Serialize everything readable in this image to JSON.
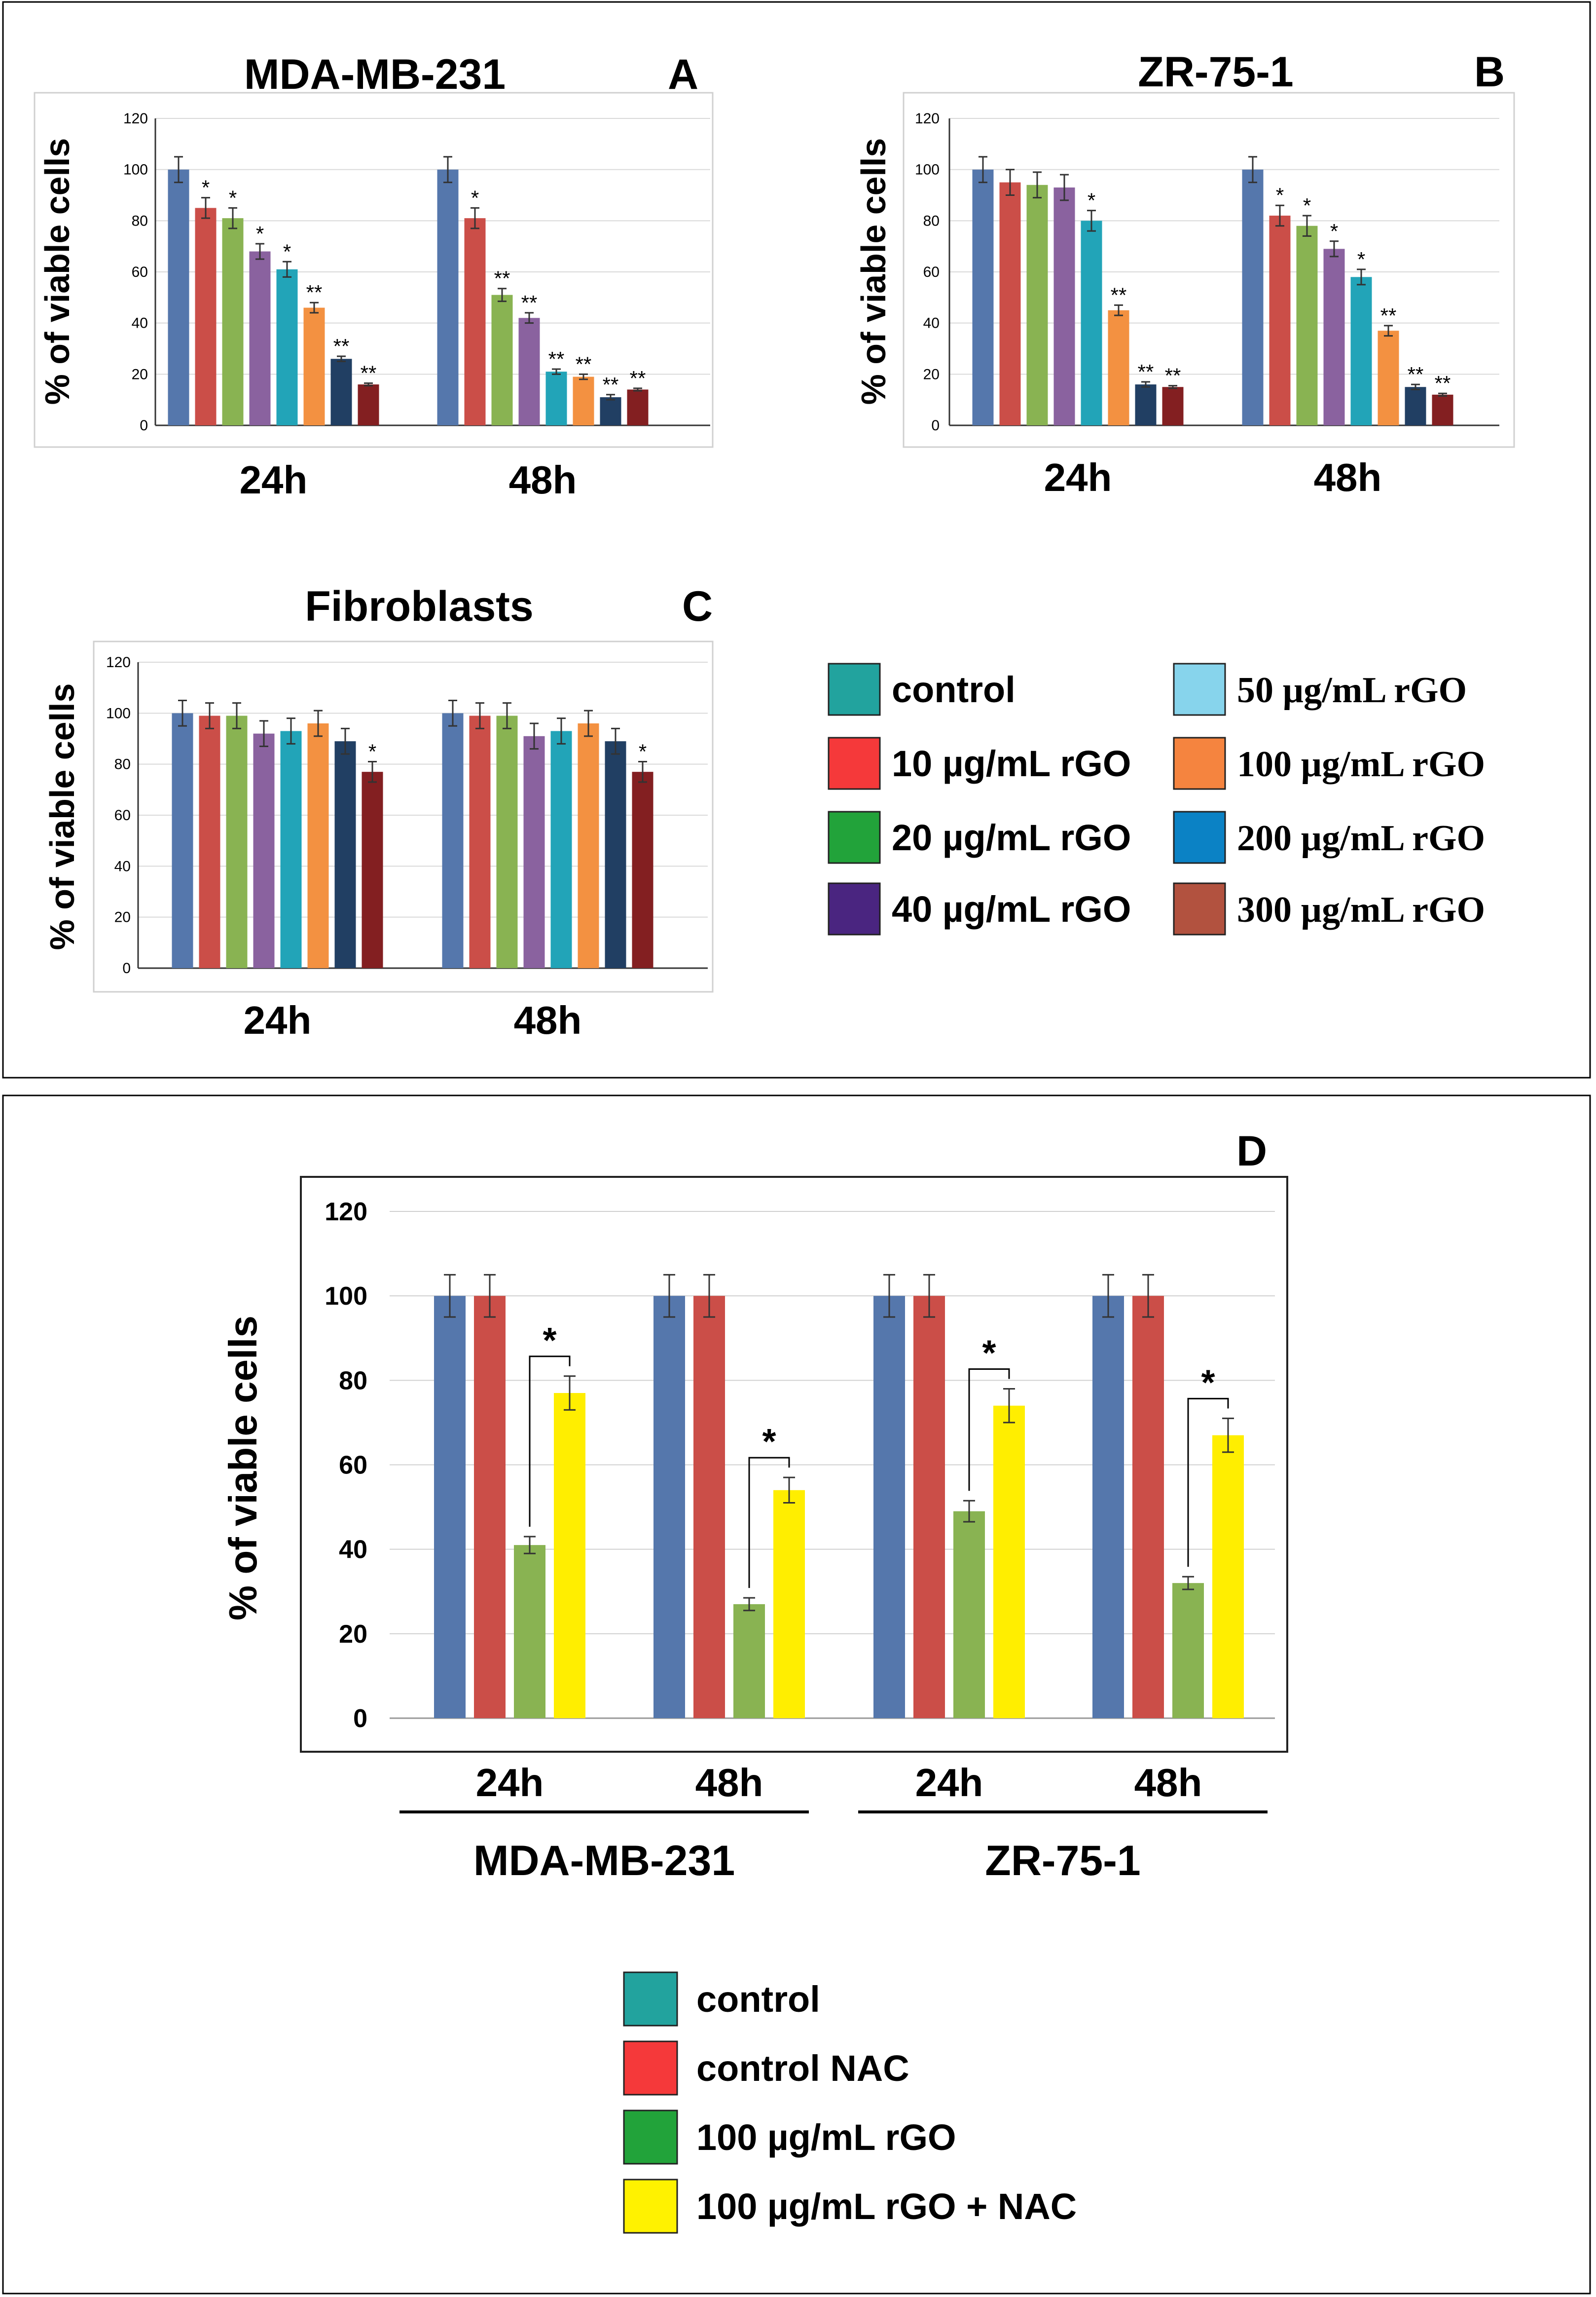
{
  "legend_top": {
    "items": [
      {
        "label": "control",
        "color": "#22A39E",
        "serif": false
      },
      {
        "label": "50 µg/mL rGO",
        "color": "#87D4EC",
        "serif": true
      },
      {
        "label": "10 µg/mL rGO",
        "color": "#F5393A",
        "serif": false
      },
      {
        "label": "100 µg/mL rGO",
        "color": "#F5843F",
        "serif": true
      },
      {
        "label": "20 µg/mL rGO",
        "color": "#22A33A",
        "serif": false
      },
      {
        "label": "200 µg/mL rGO",
        "color": "#0B82C5",
        "serif": true
      },
      {
        "label": "40 µg/mL rGO",
        "color": "#4A2580",
        "serif": false
      },
      {
        "label": "300 µg/mL rGO",
        "color": "#B2523F",
        "serif": true
      }
    ]
  },
  "legend_bottom": {
    "items": [
      {
        "label": "control",
        "color": "#22A39E"
      },
      {
        "label": "control NAC",
        "color": "#F5393A"
      },
      {
        "label": "100 µg/mL rGO",
        "color": "#22A33A"
      },
      {
        "label": "100 µg/mL rGO + NAC",
        "color": "#FFF200"
      }
    ]
  },
  "chart_data": [
    {
      "panel": "A",
      "type": "bar",
      "title": "MDA-MB-231",
      "ylabel": "% of viable cells",
      "ylim": [
        0,
        120
      ],
      "yticks": [
        "0",
        "20",
        "40",
        "60",
        "80",
        "100",
        "120"
      ],
      "categories": [
        "24h",
        "48h"
      ],
      "bar_colors": [
        "#5577AC",
        "#CB4E48",
        "#89B352",
        "#8A629F",
        "#22A4B8",
        "#F39141",
        "#213F63",
        "#831F21"
      ],
      "series": [
        {
          "name": "control",
          "values": [
            100,
            100
          ],
          "errors": [
            5,
            5
          ],
          "sig": [
            "",
            ""
          ]
        },
        {
          "name": "10 µg/mL rGO",
          "values": [
            85,
            81
          ],
          "errors": [
            4,
            4
          ],
          "sig": [
            "*",
            "*"
          ]
        },
        {
          "name": "20 µg/mL rGO",
          "values": [
            81,
            51
          ],
          "errors": [
            4,
            2.5
          ],
          "sig": [
            "*",
            "**"
          ]
        },
        {
          "name": "40 µg/mL rGO",
          "values": [
            68,
            42
          ],
          "errors": [
            3,
            2
          ],
          "sig": [
            "*",
            "**"
          ]
        },
        {
          "name": "50 µg/mL rGO",
          "values": [
            61,
            21
          ],
          "errors": [
            3,
            1
          ],
          "sig": [
            "*",
            "**"
          ]
        },
        {
          "name": "100 µg/mL rGO",
          "values": [
            46,
            19
          ],
          "errors": [
            2,
            1
          ],
          "sig": [
            "**",
            "**"
          ]
        },
        {
          "name": "200 µg/mL rGO",
          "values": [
            26,
            11
          ],
          "errors": [
            1,
            1
          ],
          "sig": [
            "**",
            "**"
          ]
        },
        {
          "name": "300 µg/mL rGO",
          "values": [
            16,
            14
          ],
          "errors": [
            0.5,
            0.5
          ],
          "sig": [
            "**",
            "**"
          ]
        }
      ]
    },
    {
      "panel": "B",
      "type": "bar",
      "title": "ZR-75-1",
      "ylabel": "% of viable cells",
      "ylim": [
        0,
        120
      ],
      "yticks": [
        "0",
        "20",
        "40",
        "60",
        "80",
        "100",
        "120"
      ],
      "categories": [
        "24h",
        "48h"
      ],
      "bar_colors": [
        "#5577AC",
        "#CB4E48",
        "#89B352",
        "#8A629F",
        "#22A4B8",
        "#F39141",
        "#213F63",
        "#831F21"
      ],
      "series": [
        {
          "name": "control",
          "values": [
            100,
            100
          ],
          "errors": [
            5,
            5
          ],
          "sig": [
            "",
            ""
          ]
        },
        {
          "name": "10 µg/mL rGO",
          "values": [
            95,
            82
          ],
          "errors": [
            5,
            4
          ],
          "sig": [
            "",
            "*"
          ]
        },
        {
          "name": "20 µg/mL rGO",
          "values": [
            94,
            78
          ],
          "errors": [
            5,
            4
          ],
          "sig": [
            "",
            "*"
          ]
        },
        {
          "name": "40 µg/mL rGO",
          "values": [
            93,
            69
          ],
          "errors": [
            5,
            3
          ],
          "sig": [
            "",
            "*"
          ]
        },
        {
          "name": "50 µg/mL rGO",
          "values": [
            80,
            58
          ],
          "errors": [
            4,
            3
          ],
          "sig": [
            "*",
            "*"
          ]
        },
        {
          "name": "100 µg/mL rGO",
          "values": [
            45,
            37
          ],
          "errors": [
            2,
            2
          ],
          "sig": [
            "**",
            "**"
          ]
        },
        {
          "name": "200 µg/mL rGO",
          "values": [
            16,
            15
          ],
          "errors": [
            1,
            1
          ],
          "sig": [
            "**",
            "**"
          ]
        },
        {
          "name": "300 µg/mL rGO",
          "values": [
            15,
            12
          ],
          "errors": [
            0.5,
            0.5
          ],
          "sig": [
            "**",
            "**"
          ]
        }
      ]
    },
    {
      "panel": "C",
      "type": "bar",
      "title": "Fibroblasts",
      "ylabel": "% of viable cells",
      "ylim": [
        0,
        120
      ],
      "yticks": [
        "0",
        "20",
        "40",
        "60",
        "80",
        "100",
        "120"
      ],
      "categories": [
        "24h",
        "48h"
      ],
      "bar_colors": [
        "#5577AC",
        "#CB4E48",
        "#89B352",
        "#8A629F",
        "#22A4B8",
        "#F39141",
        "#213F63",
        "#831F21"
      ],
      "series": [
        {
          "name": "control",
          "values": [
            100,
            100
          ],
          "errors": [
            5,
            5
          ],
          "sig": [
            "",
            ""
          ]
        },
        {
          "name": "10 µg/mL rGO",
          "values": [
            99,
            99
          ],
          "errors": [
            5,
            5
          ],
          "sig": [
            "",
            ""
          ]
        },
        {
          "name": "20 µg/mL rGO",
          "values": [
            99,
            99
          ],
          "errors": [
            5,
            5
          ],
          "sig": [
            "",
            ""
          ]
        },
        {
          "name": "40 µg/mL rGO",
          "values": [
            92,
            91
          ],
          "errors": [
            5,
            5
          ],
          "sig": [
            "",
            ""
          ]
        },
        {
          "name": "50 µg/mL rGO",
          "values": [
            93,
            93
          ],
          "errors": [
            5,
            5
          ],
          "sig": [
            "",
            ""
          ]
        },
        {
          "name": "100 µg/mL rGO",
          "values": [
            96,
            96
          ],
          "errors": [
            5,
            5
          ],
          "sig": [
            "",
            ""
          ]
        },
        {
          "name": "200 µg/mL rGO",
          "values": [
            89,
            89
          ],
          "errors": [
            5,
            5
          ],
          "sig": [
            "",
            ""
          ]
        },
        {
          "name": "300 µg/mL rGO",
          "values": [
            77,
            77
          ],
          "errors": [
            4,
            4
          ],
          "sig": [
            "*",
            "*"
          ]
        }
      ]
    },
    {
      "panel": "D",
      "type": "bar",
      "title": "",
      "ylabel": "% of viable cells",
      "ylim": [
        0,
        120
      ],
      "yticks": [
        "0",
        "20",
        "40",
        "60",
        "80",
        "100",
        "120"
      ],
      "categories": [
        "24h",
        "48h",
        "24h",
        "48h"
      ],
      "groups": [
        "MDA-MB-231",
        "ZR-75-1"
      ],
      "bar_colors": [
        "#5577AC",
        "#CB4E48",
        "#89B352",
        "#FFEE00"
      ],
      "series": [
        {
          "name": "control",
          "values": [
            100,
            100,
            100,
            100
          ],
          "errors": [
            5,
            5,
            5,
            5
          ]
        },
        {
          "name": "control NAC",
          "values": [
            100,
            100,
            100,
            100
          ],
          "errors": [
            5,
            5,
            5,
            5
          ]
        },
        {
          "name": "100 µg/mL rGO",
          "values": [
            41,
            27,
            49,
            32
          ],
          "errors": [
            2,
            1.5,
            2.5,
            1.5
          ]
        },
        {
          "name": "100 µg/mL rGO + NAC",
          "values": [
            77,
            54,
            74,
            67
          ],
          "errors": [
            4,
            3,
            4,
            4
          ]
        }
      ],
      "sig_brackets": [
        "*",
        "*",
        "*",
        "*"
      ]
    }
  ]
}
